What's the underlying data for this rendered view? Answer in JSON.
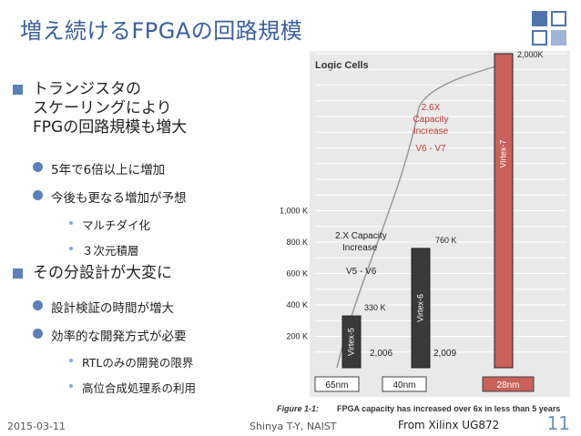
{
  "slide": {
    "title": "増え続けるFPGAの回路規模",
    "bullets": {
      "b1_line1": "トランジスタの",
      "b1_line2": "スケーリングにより",
      "b1_line3": "FPGの回路規模も増大",
      "b1_sub1": "5年で6倍以上に増加",
      "b1_sub2": "今後も更なる増加が予想",
      "b1_sub2_a": "マルチダイ化",
      "b1_sub2_b": "３次元積層",
      "b2": "その分設計が大変に",
      "b2_sub1": "設計検証の時間が増大",
      "b2_sub2": "効率的な開発方式が必要",
      "b2_sub2_a": "RTLのみの開発の限界",
      "b2_sub2_b": "高位合成処理系の利用"
    },
    "footer": {
      "date": "2015-03-11",
      "author": "Shinya T-Y, NAIST",
      "source": "From Xilinx UG872",
      "page": "11"
    }
  },
  "chart_data": {
    "type": "bar",
    "title": "Logic Cells",
    "categories": [
      "65nm",
      "40nm",
      "28nm"
    ],
    "series_labels": [
      "Virtex-5",
      "Virtex-6",
      "Virtex-7"
    ],
    "values": [
      330,
      760,
      2000
    ],
    "value_labels": [
      "330 K",
      "760 K",
      "2,000K"
    ],
    "years": [
      "2,006",
      "2,009"
    ],
    "y_ticks": [
      "200 K",
      "400 K",
      "600 K",
      "800 K",
      "1,000 K"
    ],
    "annotation_v5v6": {
      "line1": "2.X Capacity",
      "line2": "Increase",
      "line3": "V5 - V6"
    },
    "annotation_v6v7": {
      "line1": "2.6X",
      "line2": "Capacity",
      "line3": "Increase",
      "line4": "V6 - V7"
    },
    "caption_label": "Figure 1-1:",
    "caption_text": "FPGA capacity has increased over 6x in less than 5 years",
    "colors": {
      "v5": "#3a3a3a",
      "v6": "#3a3a3a",
      "v7": "#c9605a",
      "annotation_red": "#c0392b",
      "panel": "#e9e9e9"
    }
  }
}
